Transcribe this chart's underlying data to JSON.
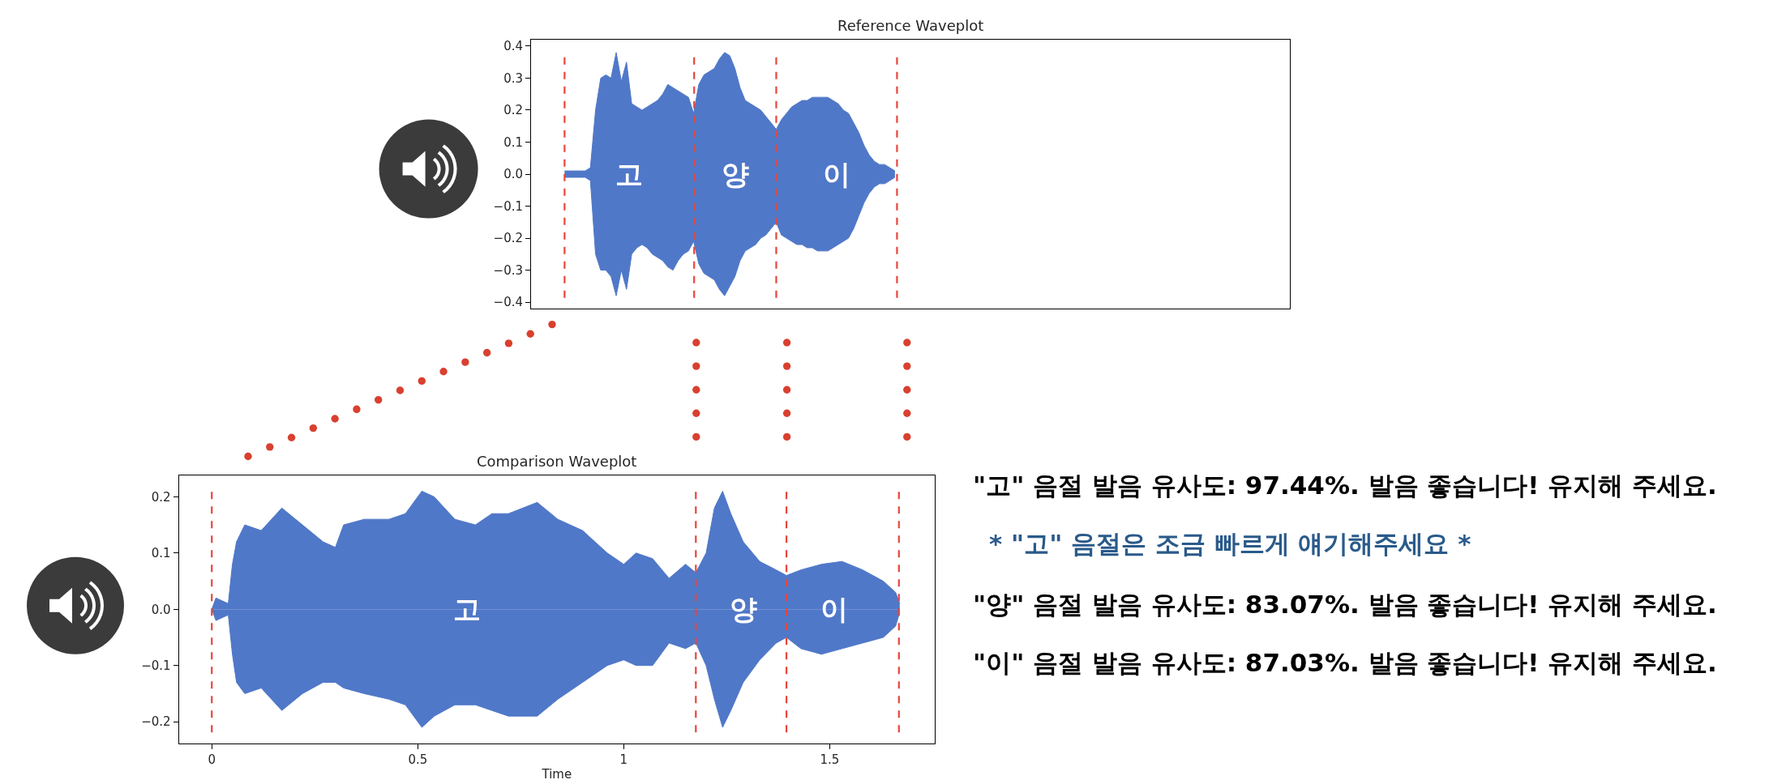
{
  "chart_data": [
    {
      "type": "area",
      "title": "Reference Waveplot",
      "categories": [
        null,
        null,
        null,
        null,
        null,
        null,
        null,
        null,
        null,
        null,
        null,
        null,
        null,
        null,
        null,
        null,
        null,
        null,
        null,
        null,
        null,
        null,
        null,
        null,
        null,
        null,
        null,
        null,
        null,
        null,
        null,
        null,
        null,
        null,
        null,
        null,
        null,
        null,
        null,
        null,
        null,
        null,
        null,
        null,
        null,
        null,
        null,
        null,
        null,
        null,
        null,
        null,
        null,
        null,
        null,
        null,
        null,
        null,
        null,
        null,
        null,
        null,
        null,
        null,
        null,
        null,
        null,
        null,
        null,
        null,
        null,
        null,
        null,
        null,
        null,
        null,
        null,
        null,
        null,
        null,
        null,
        null,
        null,
        null,
        null,
        null,
        null,
        null,
        null,
        null,
        null,
        null,
        null,
        null,
        null,
        null,
        null,
        null,
        null,
        null,
        null,
        null,
        null,
        null,
        null,
        null,
        null,
        null,
        null,
        null,
        null,
        null,
        null,
        null,
        null,
        null,
        null,
        null,
        null,
        null,
        null,
        null,
        null,
        null,
        null,
        null,
        null,
        null,
        null,
        null,
        null,
        null,
        null,
        null,
        null,
        null,
        null,
        null,
        null,
        null,
        null,
        null,
        null,
        null,
        null,
        null,
        null
      ],
      "series": [
        {
          "color": "#5078c8",
          "values": [
            null,
            null,
            null,
            null,
            null,
            null,
            0.01,
            0.01,
            0.01,
            0.01,
            0.01,
            0.02,
            0.2,
            0.3,
            0.31,
            0.3,
            0.38,
            0.29,
            0.35,
            0.22,
            0.21,
            0.2,
            0.21,
            0.22,
            0.23,
            0.25,
            0.28,
            0.27,
            0.26,
            0.25,
            0.24,
            0.19,
            0.28,
            0.31,
            0.32,
            0.33,
            0.36,
            0.38,
            0.37,
            0.33,
            0.27,
            0.23,
            0.22,
            0.21,
            0.2,
            0.18,
            0.16,
            0.14,
            0.17,
            0.19,
            0.21,
            0.22,
            0.23,
            0.23,
            0.24,
            0.24,
            0.24,
            0.24,
            0.23,
            0.22,
            0.2,
            0.19,
            0.16,
            0.13,
            0.09,
            0.06,
            0.04,
            0.03,
            0.03,
            0.02,
            0.01,
            null,
            null,
            null,
            null,
            null,
            null,
            null,
            null,
            null,
            null,
            null,
            null,
            null,
            null,
            null,
            null,
            null,
            null,
            null,
            null,
            null,
            null,
            null,
            null,
            null,
            null,
            null,
            null,
            null,
            null,
            null,
            null,
            null,
            null,
            null,
            null,
            null,
            null,
            null,
            null,
            null,
            null,
            null,
            null,
            null,
            null,
            null,
            null,
            null,
            null,
            null,
            null,
            null,
            null,
            null,
            null,
            null,
            null,
            null,
            null,
            null,
            null,
            null,
            null,
            null,
            null,
            null,
            null,
            null,
            null,
            null,
            null,
            null,
            null,
            null,
            null
          ]
        },
        {
          "color": "#5078c8",
          "values": [
            null,
            null,
            null,
            null,
            null,
            null,
            -0.01,
            -0.01,
            -0.01,
            -0.01,
            -0.01,
            -0.02,
            -0.25,
            -0.3,
            -0.3,
            -0.32,
            -0.38,
            -0.3,
            -0.36,
            -0.25,
            -0.23,
            -0.22,
            -0.23,
            -0.25,
            -0.26,
            -0.27,
            -0.29,
            -0.3,
            -0.27,
            -0.25,
            -0.24,
            -0.21,
            -0.28,
            -0.31,
            -0.32,
            -0.33,
            -0.36,
            -0.38,
            -0.35,
            -0.32,
            -0.27,
            -0.24,
            -0.23,
            -0.22,
            -0.2,
            -0.19,
            -0.17,
            -0.15,
            -0.19,
            -0.2,
            -0.21,
            -0.22,
            -0.22,
            -0.23,
            -0.23,
            -0.24,
            -0.24,
            -0.24,
            -0.23,
            -0.22,
            -0.21,
            -0.2,
            -0.17,
            -0.13,
            -0.09,
            -0.06,
            -0.04,
            -0.03,
            -0.03,
            -0.02,
            -0.01,
            null,
            null,
            null,
            null,
            null,
            null,
            null,
            null,
            null,
            null,
            null,
            null,
            null,
            null,
            null,
            null,
            null,
            null,
            null,
            null,
            null,
            null,
            null,
            null,
            null,
            null,
            null,
            null,
            null,
            null,
            null,
            null,
            null,
            null,
            null,
            null,
            null,
            null,
            null,
            null,
            null,
            null,
            null,
            null,
            null,
            null,
            null,
            null,
            null,
            null,
            null,
            null,
            null,
            null,
            null,
            null,
            null,
            null,
            null,
            null,
            null,
            null,
            null,
            null,
            null,
            null,
            null,
            null,
            null,
            null,
            null,
            null,
            null,
            null,
            null,
            null
          ]
        }
      ],
      "ylim": [
        -0.42,
        0.42
      ],
      "yticks": [
        0.4,
        0.3,
        0.2,
        0.1,
        {
          "value": 0,
          "label": "0.0"
        },
        {
          "value": -0.1,
          "label": "−0.1"
        },
        {
          "value": -0.2,
          "label": "−0.2"
        },
        {
          "value": -0.3,
          "label": "−0.3"
        },
        {
          "value": -0.4,
          "label": "−0.4"
        }
      ],
      "tick_labels": "y",
      "annotations": [
        "고",
        "양",
        "이"
      ]
    },
    {
      "type": "area",
      "title": "Comparison Waveplot",
      "xlabel": "Time",
      "x": [
        0,
        0.01,
        0.04,
        0.05,
        0.06,
        0.08,
        0.12,
        0.17,
        0.22,
        0.27,
        0.3,
        0.32,
        0.37,
        0.43,
        0.47,
        0.51,
        0.54,
        0.59,
        0.64,
        0.68,
        0.72,
        0.79,
        0.84,
        0.9,
        0.96,
        1,
        1.03,
        1.07,
        1.11,
        1.15,
        1.175,
        1.2,
        1.22,
        1.24,
        1.26,
        1.29,
        1.33,
        1.37,
        1.395,
        1.43,
        1.48,
        1.53,
        1.58,
        1.63,
        1.66,
        1.67
      ],
      "series": [
        {
          "color": "#5078c8",
          "values": [
            0,
            0.02,
            0.01,
            0.08,
            0.12,
            0.15,
            0.14,
            0.18,
            0.15,
            0.12,
            0.11,
            0.15,
            0.16,
            0.16,
            0.17,
            0.21,
            0.2,
            0.16,
            0.15,
            0.17,
            0.17,
            0.19,
            0.16,
            0.14,
            0.1,
            0.08,
            0.1,
            0.09,
            0.055,
            0.08,
            0.065,
            0.1,
            0.18,
            0.21,
            0.17,
            0.12,
            0.085,
            0.07,
            0.06,
            0.07,
            0.08,
            0.085,
            0.07,
            0.05,
            0.03,
            0.01
          ]
        },
        {
          "color": "#5078c8",
          "values": [
            0,
            -0.02,
            -0.01,
            -0.08,
            -0.13,
            -0.15,
            -0.14,
            -0.18,
            -0.15,
            -0.13,
            -0.13,
            -0.14,
            -0.15,
            -0.16,
            -0.17,
            -0.21,
            -0.19,
            -0.17,
            -0.17,
            -0.18,
            -0.19,
            -0.19,
            -0.16,
            -0.13,
            -0.1,
            -0.09,
            -0.1,
            -0.1,
            -0.06,
            -0.07,
            -0.06,
            -0.1,
            -0.16,
            -0.21,
            -0.18,
            -0.13,
            -0.09,
            -0.06,
            -0.05,
            -0.07,
            -0.08,
            -0.07,
            -0.06,
            -0.05,
            -0.03,
            -0.005
          ]
        }
      ],
      "xlim": [
        -0.08,
        1.755
      ],
      "xticks": [
        0,
        0.5,
        1,
        1.5
      ],
      "ylim": [
        -0.238,
        0.238
      ],
      "yticks": [
        0.2,
        0.1,
        {
          "value": 0,
          "label": "0.0"
        },
        {
          "value": -0.1,
          "label": "−0.1"
        },
        {
          "value": -0.2,
          "label": "−0.2"
        }
      ],
      "ref_lines": [
        {
          "axis": "x",
          "value": 0,
          "color": "#e8453c",
          "line_style": "dashed"
        },
        {
          "axis": "x",
          "value": 1.175,
          "color": "#e8453c",
          "line_style": "dashed"
        },
        {
          "axis": "x",
          "value": 1.395,
          "color": "#e8453c",
          "line_style": "dashed"
        },
        {
          "axis": "x",
          "value": 1.668,
          "color": "#e8453c",
          "line_style": "dashed"
        }
      ],
      "annotations": [
        {
          "text": "고",
          "x": 0.62,
          "y": 0
        },
        {
          "text": "양",
          "x": 1.29,
          "y": 0
        },
        {
          "text": "이",
          "x": 1.51,
          "y": 0
        }
      ]
    },
    {
      "type": "other",
      "annotations": [
        "\"고\" 음절 발음 유사도: 97.44%. 발음 좋습니다! 유지해 주세요.",
        "* \"고\" 음절은 조금 빠르게 얘기해주세요 *",
        "\"양\" 음절 발음 유사도: 83.07%. 발음 좋습니다! 유지해 주세요.",
        "\"이\" 음절 발음 유사도: 87.03%. 발음 좋습니다! 유지해 주세요."
      ],
      "colors": [
        "#000000",
        "#2a5a8a",
        "#000000",
        "#000000"
      ]
    }
  ]
}
